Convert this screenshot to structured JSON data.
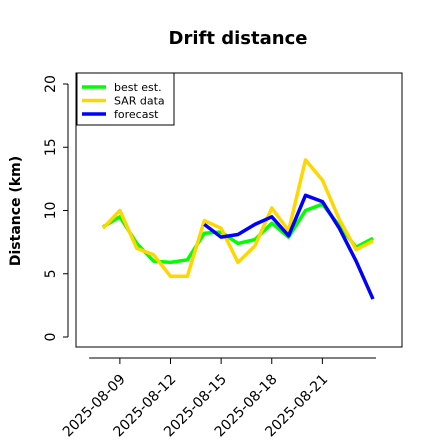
{
  "chart_data": {
    "type": "line",
    "title": "Drift distance",
    "xlabel": "",
    "ylabel": "Distance (km)",
    "x_range": [
      "2025-08-07",
      "2025-08-24"
    ],
    "ylim": [
      0,
      21
    ],
    "yticks": [
      0,
      5,
      10,
      15,
      20
    ],
    "x_ticks": [
      "2025-08-09",
      "2025-08-12",
      "2025-08-15",
      "2025-08-18",
      "2025-08-21"
    ],
    "grid": false,
    "legend_position": "top-left",
    "series": [
      {
        "name": "best est.",
        "color": "#00ff00",
        "points": [
          {
            "x": "2025-08-08",
            "y": 8.7
          },
          {
            "x": "2025-08-09",
            "y": 9.5
          },
          {
            "x": "2025-08-10",
            "y": 7.4
          },
          {
            "x": "2025-08-11",
            "y": 6.0
          },
          {
            "x": "2025-08-12",
            "y": 5.9
          },
          {
            "x": "2025-08-13",
            "y": 6.1
          },
          {
            "x": "2025-08-14",
            "y": 8.2
          },
          {
            "x": "2025-08-15",
            "y": 8.3
          },
          {
            "x": "2025-08-16",
            "y": 7.4
          },
          {
            "x": "2025-08-17",
            "y": 7.7
          },
          {
            "x": "2025-08-18",
            "y": 9.0
          },
          {
            "x": "2025-08-19",
            "y": 7.9
          },
          {
            "x": "2025-08-20",
            "y": 10.0
          },
          {
            "x": "2025-08-21",
            "y": 10.5
          },
          {
            "x": "2025-08-22",
            "y": 8.8
          },
          {
            "x": "2025-08-23",
            "y": 7.1
          },
          {
            "x": "2025-08-24",
            "y": 7.8
          }
        ]
      },
      {
        "name": "SAR data",
        "color": "#ffd700",
        "points": [
          {
            "x": "2025-08-08",
            "y": 8.6
          },
          {
            "x": "2025-08-09",
            "y": 10.0
          },
          {
            "x": "2025-08-10",
            "y": 7.0
          },
          {
            "x": "2025-08-11",
            "y": 6.5
          },
          {
            "x": "2025-08-12",
            "y": 4.8
          },
          {
            "x": "2025-08-13",
            "y": 4.8
          },
          {
            "x": "2025-08-14",
            "y": 9.2
          },
          {
            "x": "2025-08-15",
            "y": 8.6
          },
          {
            "x": "2025-08-16",
            "y": 5.9
          },
          {
            "x": "2025-08-17",
            "y": 7.2
          },
          {
            "x": "2025-08-18",
            "y": 10.2
          },
          {
            "x": "2025-08-19",
            "y": 8.4
          },
          {
            "x": "2025-08-20",
            "y": 14.0
          },
          {
            "x": "2025-08-21",
            "y": 12.4
          },
          {
            "x": "2025-08-22",
            "y": 9.3
          },
          {
            "x": "2025-08-23",
            "y": 6.9
          },
          {
            "x": "2025-08-24",
            "y": 7.6
          }
        ]
      },
      {
        "name": "forecast",
        "color": "#0000ff",
        "points": [
          {
            "x": "2025-08-14",
            "y": 8.9
          },
          {
            "x": "2025-08-15",
            "y": 7.9
          },
          {
            "x": "2025-08-16",
            "y": 8.1
          },
          {
            "x": "2025-08-17",
            "y": 8.9
          },
          {
            "x": "2025-08-18",
            "y": 9.5
          },
          {
            "x": "2025-08-19",
            "y": 8.0
          },
          {
            "x": "2025-08-20",
            "y": 11.2
          },
          {
            "x": "2025-08-21",
            "y": 10.7
          },
          {
            "x": "2025-08-22",
            "y": 8.6
          },
          {
            "x": "2025-08-23",
            "y": 6.0
          },
          {
            "x": "2025-08-24",
            "y": 3.0
          }
        ]
      }
    ]
  }
}
